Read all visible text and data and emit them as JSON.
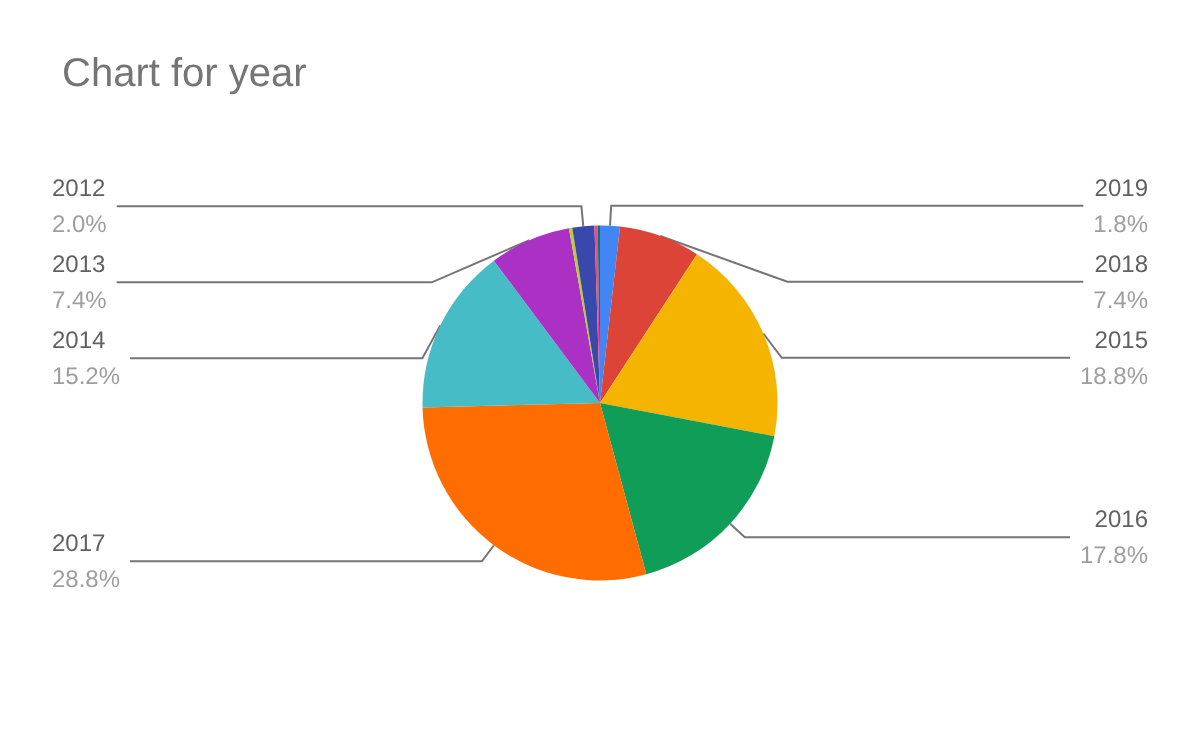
{
  "chart_data": {
    "type": "pie",
    "title": "Chart for year",
    "categories": [
      "2019",
      "2018",
      "2015",
      "2016",
      "2017",
      "2014",
      "2013",
      null,
      "2012",
      null,
      null
    ],
    "values": [
      1.8,
      7.4,
      18.8,
      17.8,
      28.8,
      15.2,
      7.4,
      0.3,
      2.0,
      0.3,
      0.2
    ],
    "value_labels": [
      "1.8%",
      "7.4%",
      "18.8%",
      "17.8%",
      "28.8%",
      "15.2%",
      "7.4%",
      null,
      "2.0%",
      null,
      null
    ],
    "colors": [
      "#4285f4",
      "#db4437",
      "#f4b400",
      "#0f9d58",
      "#ff6d01",
      "#46bdc6",
      "#ab30c4",
      "#c0ca33",
      "#3949ab",
      "#ff4081",
      "#00796b"
    ],
    "legend": false
  }
}
